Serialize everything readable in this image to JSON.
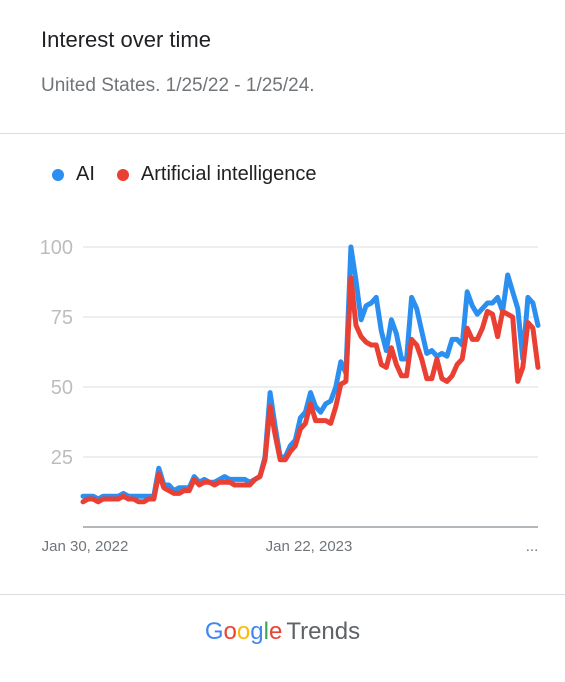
{
  "header": {
    "title": "Interest over time",
    "subtitle": "United States. 1/25/22 - 1/25/24."
  },
  "footer": {
    "logo_letters": [
      "G",
      "o",
      "o",
      "g",
      "l",
      "e"
    ],
    "product": "Trends"
  },
  "colors": {
    "ai": "#2b8ff0",
    "artificial_intelligence": "#ea3f33",
    "grid": "#dadce0",
    "axis": "#9aa0a6"
  },
  "chart_data": {
    "type": "line",
    "title": "Interest over time",
    "subtitle": "United States. 1/25/22 - 1/25/24.",
    "ylim": [
      0,
      100
    ],
    "y_ticks": [
      "100",
      "75",
      "50",
      "25"
    ],
    "y_tick_values": [
      100,
      75,
      50,
      25
    ],
    "x_tick_labels": [
      "Jan 30, 2022",
      "Jan 22, 2023",
      "..."
    ],
    "legend_position": "top-left",
    "grid": true,
    "series": [
      {
        "name": "AI",
        "color": "#2b8ff0",
        "values": [
          11,
          11,
          11,
          10,
          11,
          11,
          11,
          11,
          12,
          11,
          11,
          11,
          11,
          11,
          11,
          21,
          15,
          15,
          13,
          14,
          14,
          14,
          18,
          16,
          17,
          16,
          16,
          17,
          18,
          17,
          17,
          17,
          17,
          16,
          17,
          18,
          25,
          48,
          36,
          25,
          25,
          29,
          31,
          39,
          41,
          48,
          43,
          41,
          44,
          45,
          50,
          59,
          55,
          100,
          88,
          74,
          79,
          80,
          82,
          70,
          63,
          74,
          69,
          60,
          60,
          82,
          78,
          70,
          62,
          63,
          61,
          62,
          61,
          67,
          67,
          65,
          84,
          79,
          76,
          78,
          80,
          80,
          82,
          77,
          90,
          84,
          78,
          60,
          82,
          80,
          72
        ]
      },
      {
        "name": "Artificial intelligence",
        "color": "#ea3f33",
        "values": [
          9,
          10,
          10,
          9,
          10,
          10,
          10,
          10,
          11,
          10,
          10,
          9,
          9,
          10,
          10,
          19,
          14,
          13,
          12,
          12,
          13,
          13,
          17,
          15,
          16,
          16,
          15,
          16,
          16,
          16,
          15,
          15,
          15,
          15,
          17,
          18,
          24,
          43,
          33,
          24,
          24,
          27,
          29,
          35,
          37,
          44,
          38,
          38,
          38,
          37,
          43,
          51,
          52,
          89,
          72,
          68,
          66,
          65,
          65,
          58,
          57,
          64,
          58,
          54,
          54,
          67,
          65,
          60,
          53,
          53,
          60,
          53,
          52,
          54,
          58,
          60,
          71,
          67,
          67,
          71,
          77,
          76,
          68,
          77,
          76,
          75,
          52,
          57,
          73,
          71,
          57
        ]
      }
    ]
  }
}
